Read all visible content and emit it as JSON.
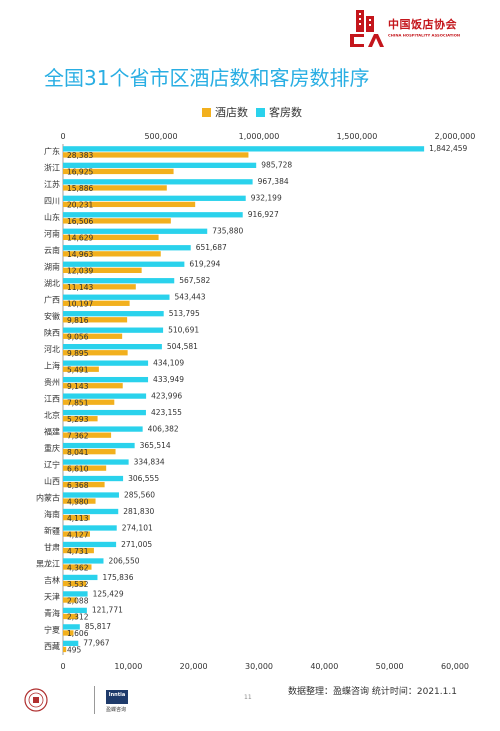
{
  "header": {
    "brand_name": "中国饭店协会",
    "brand_sub": "CHINA HOSPITALITY ASSOCIATION"
  },
  "title": "全国31个省市区酒店数和客房数排序",
  "legend": [
    {
      "label": "酒店数",
      "color": "#f2b01e"
    },
    {
      "label": "客房数",
      "color": "#2ad2ec"
    }
  ],
  "footer": {
    "innjia_word": "Inntia",
    "innjia_cn": "盈蝶咨询",
    "page_number": "11",
    "source": "数据整理：盈蝶咨询  统计时间：2021.1.1"
  },
  "chart_data": {
    "type": "bar",
    "orientation": "horizontal",
    "categories": [
      "广东",
      "浙江",
      "江苏",
      "四川",
      "山东",
      "河南",
      "云南",
      "湖南",
      "湖北",
      "广西",
      "安徽",
      "陕西",
      "河北",
      "上海",
      "贵州",
      "江西",
      "北京",
      "福建",
      "重庆",
      "辽宁",
      "山西",
      "内蒙古",
      "海南",
      "新疆",
      "甘肃",
      "黑龙江",
      "吉林",
      "天津",
      "青海",
      "宁夏",
      "西藏"
    ],
    "series": [
      {
        "name": "酒店数",
        "axis": "bottom",
        "color": "#f2b01e",
        "values": [
          28383,
          16925,
          15886,
          20231,
          16506,
          14629,
          14963,
          12039,
          11143,
          10197,
          9816,
          9056,
          9895,
          5491,
          9143,
          7851,
          5293,
          7362,
          8041,
          6610,
          6368,
          4980,
          4113,
          4127,
          4731,
          4362,
          3532,
          2088,
          2312,
          1606,
          495
        ],
        "labels": [
          "28,383",
          "16,925",
          "15,886",
          "20,231",
          "16,506",
          "14,629",
          "14,963",
          "12,039",
          "11,143",
          "10,197",
          "9,816",
          "9,056",
          "9,895",
          "5,491",
          "9,143",
          "7,851",
          "5,293",
          "7,362",
          "8,041",
          "6,610",
          "6,368",
          "4,980",
          "4,113",
          "4,127",
          "4,731",
          "4,362",
          "3,532",
          "2,088",
          "2,312",
          "1,606",
          "495"
        ]
      },
      {
        "name": "客房数",
        "axis": "top",
        "color": "#2ad2ec",
        "values": [
          1842459,
          985728,
          967384,
          932199,
          916927,
          735880,
          651687,
          619294,
          567582,
          543443,
          513795,
          510691,
          504581,
          434109,
          433949,
          423996,
          423155,
          406382,
          365514,
          334834,
          306555,
          285560,
          281830,
          274101,
          271005,
          206550,
          175836,
          125429,
          121771,
          85817,
          77967
        ],
        "labels": [
          "1,842,459",
          "985,728",
          "967,384",
          "932,199",
          "916,927",
          "735,880",
          "651,687",
          "619,294",
          "567,582",
          "543,443",
          "513,795",
          "510,691",
          "504,581",
          "434,109",
          "433,949",
          "423,996",
          "423,155",
          "406,382",
          "365,514",
          "334,834",
          "306,555",
          "285,560",
          "281,830",
          "274,101",
          "271,005",
          "206,550",
          "175,836",
          "125,429",
          "121,771",
          "85,817",
          "77,967"
        ]
      }
    ],
    "x_top": {
      "range": [
        0,
        2000000
      ],
      "ticks": [
        0,
        500000,
        1000000,
        1500000,
        2000000
      ],
      "tick_labels": [
        "0",
        "500,000",
        "1,000,000",
        "1,500,000",
        "2,000,000"
      ]
    },
    "x_bottom": {
      "range": [
        0,
        60000
      ],
      "ticks": [
        0,
        10000,
        20000,
        30000,
        40000,
        50000,
        60000
      ],
      "tick_labels": [
        "0",
        "10,000",
        "20,000",
        "30,000",
        "40,000",
        "50,000",
        "60,000"
      ]
    },
    "grid": false
  }
}
